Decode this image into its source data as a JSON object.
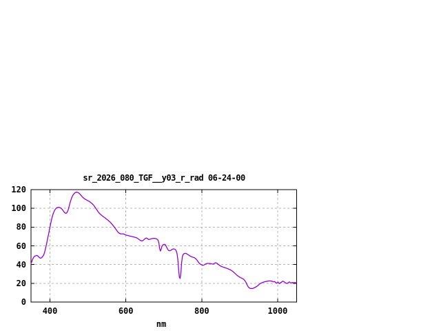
{
  "window": {
    "background": "#ffffff"
  },
  "chart_data": {
    "type": "line",
    "title": "sr_2026_080_TGF__y03_r_rad 06-24-00",
    "xlabel": "nm",
    "ylabel": "",
    "xlim": [
      350,
      1050
    ],
    "ylim": [
      0,
      120
    ],
    "x_ticks": [
      400,
      600,
      800,
      1000
    ],
    "y_ticks": [
      0,
      20,
      40,
      60,
      80,
      100,
      120
    ],
    "grid": true,
    "legend": "none",
    "colors": {
      "line": "#9400D3",
      "grid": "#b4b4b4",
      "border": "#000000",
      "text": "#000000",
      "background": "#ffffff"
    },
    "series": [
      {
        "name": "",
        "x": [
          350,
          352,
          354,
          356,
          358,
          360,
          363,
          366,
          369,
          372,
          375,
          378,
          381,
          383,
          385,
          387,
          389,
          391,
          394,
          397,
          400,
          403,
          406,
          409,
          412,
          415,
          418,
          421,
          424,
          427,
          430,
          433,
          436,
          439,
          442,
          445,
          448,
          451,
          454,
          457,
          460,
          463,
          466,
          469,
          472,
          475,
          478,
          481,
          484,
          487,
          490,
          493,
          496,
          499,
          502,
          505,
          508,
          511,
          514,
          517,
          520,
          523,
          526,
          529,
          532,
          535,
          538,
          541,
          544,
          547,
          550,
          553,
          556,
          559,
          562,
          565,
          568,
          571,
          574,
          577,
          580,
          583,
          586,
          589,
          592,
          595,
          598,
          601,
          604,
          607,
          610,
          614,
          618,
          622,
          626,
          630,
          634,
          638,
          642,
          645,
          648,
          651,
          654,
          657,
          660,
          663,
          666,
          670,
          674,
          678,
          682,
          685,
          687,
          689,
          691,
          693,
          695,
          698,
          701,
          704,
          707,
          710,
          713,
          716,
          719,
          722,
          725,
          728,
          731,
          733,
          735,
          737,
          739,
          741,
          743,
          745,
          747,
          749,
          751,
          754,
          757,
          760,
          763,
          766,
          769,
          772,
          775,
          778,
          781,
          784,
          787,
          790,
          793,
          796,
          799,
          802,
          805,
          808,
          811,
          814,
          818,
          822,
          826,
          830,
          833,
          836,
          839,
          842,
          845,
          848,
          852,
          856,
          860,
          864,
          868,
          872,
          876,
          880,
          884,
          888,
          892,
          896,
          900,
          904,
          908,
          911,
          914,
          917,
          920,
          923,
          926,
          929,
          932,
          935,
          938,
          941,
          944,
          947,
          950,
          953,
          956,
          959,
          962,
          965,
          968,
          971,
          974,
          977,
          980,
          983,
          986,
          989,
          992,
          995,
          998,
          1001,
          1004,
          1007,
          1010,
          1013,
          1016,
          1019,
          1022,
          1025,
          1028,
          1031,
          1034,
          1037,
          1040,
          1043,
          1046,
          1049
        ],
        "y": [
          41,
          43,
          45.5,
          47,
          48.3,
          49,
          49.4,
          49.8,
          48.8,
          47.5,
          46.8,
          47.3,
          48.8,
          50,
          52,
          55,
          58.5,
          62,
          68,
          74,
          80,
          86,
          91,
          95,
          97.8,
          99.6,
          100.6,
          101.1,
          101.1,
          100.7,
          99.8,
          98.5,
          96.8,
          95.3,
          94.6,
          95.5,
          98.5,
          103,
          107.5,
          111,
          113.8,
          115.5,
          116.7,
          117.3,
          117.2,
          116.6,
          115.7,
          114.3,
          112.8,
          111.6,
          110.5,
          109.8,
          109,
          108.4,
          107.8,
          107,
          106,
          105,
          103.8,
          102.3,
          100.5,
          98.7,
          96.9,
          95.3,
          94,
          93,
          92,
          91,
          90.2,
          89.3,
          88.3,
          87.3,
          86.2,
          85.2,
          83.8,
          82.3,
          80.8,
          79.2,
          77.5,
          75.8,
          74.3,
          73.3,
          72.8,
          72.8,
          72.9,
          72.5,
          72,
          71.4,
          71.1,
          70.8,
          70.5,
          70.1,
          69.7,
          69.3,
          68.9,
          68.2,
          67,
          65.8,
          65.2,
          65.6,
          66.8,
          67.8,
          68.4,
          67.6,
          66.8,
          67,
          67.4,
          67.8,
          68,
          67.8,
          67.2,
          65.8,
          63,
          57,
          54.5,
          56.5,
          59.5,
          61.2,
          61.6,
          61.2,
          58.8,
          56.3,
          55,
          54.7,
          55.3,
          56.3,
          56.7,
          56.6,
          55.8,
          54.3,
          51.3,
          45.5,
          35,
          26.5,
          25.2,
          31,
          42,
          48.5,
          50.8,
          51.8,
          52,
          51.6,
          50.9,
          50,
          49.2,
          48.6,
          48,
          47.7,
          47.2,
          46.3,
          44.9,
          43.2,
          41.6,
          40.5,
          39.9,
          39.3,
          39.4,
          40.1,
          40.8,
          41.2,
          41.2,
          41.1,
          40.8,
          40.5,
          41.2,
          41.9,
          41.7,
          40.6,
          39.8,
          38.8,
          37.9,
          37.3,
          36.8,
          36.3,
          35.6,
          35,
          34.2,
          33.2,
          31.9,
          30.4,
          28.9,
          27.6,
          26.6,
          25.7,
          24.9,
          24,
          22.6,
          20.5,
          17.8,
          15.8,
          14.8,
          14.4,
          14.4,
          14.6,
          15.2,
          15.8,
          16.4,
          17.3,
          18.4,
          19.4,
          20.1,
          20.7,
          21.2,
          21.6,
          21.9,
          22.1,
          22.3,
          22.5,
          22.5,
          22.3,
          22.1,
          21.6,
          21.9,
          20.8,
          20.1,
          21.3,
          19.7,
          20.4,
          21.2,
          22.2,
          21.9,
          21,
          20.2,
          19.7,
          20.8,
          21.5,
          20.4,
          20.6,
          20.9,
          20.4,
          21,
          20.2
        ]
      }
    ]
  }
}
